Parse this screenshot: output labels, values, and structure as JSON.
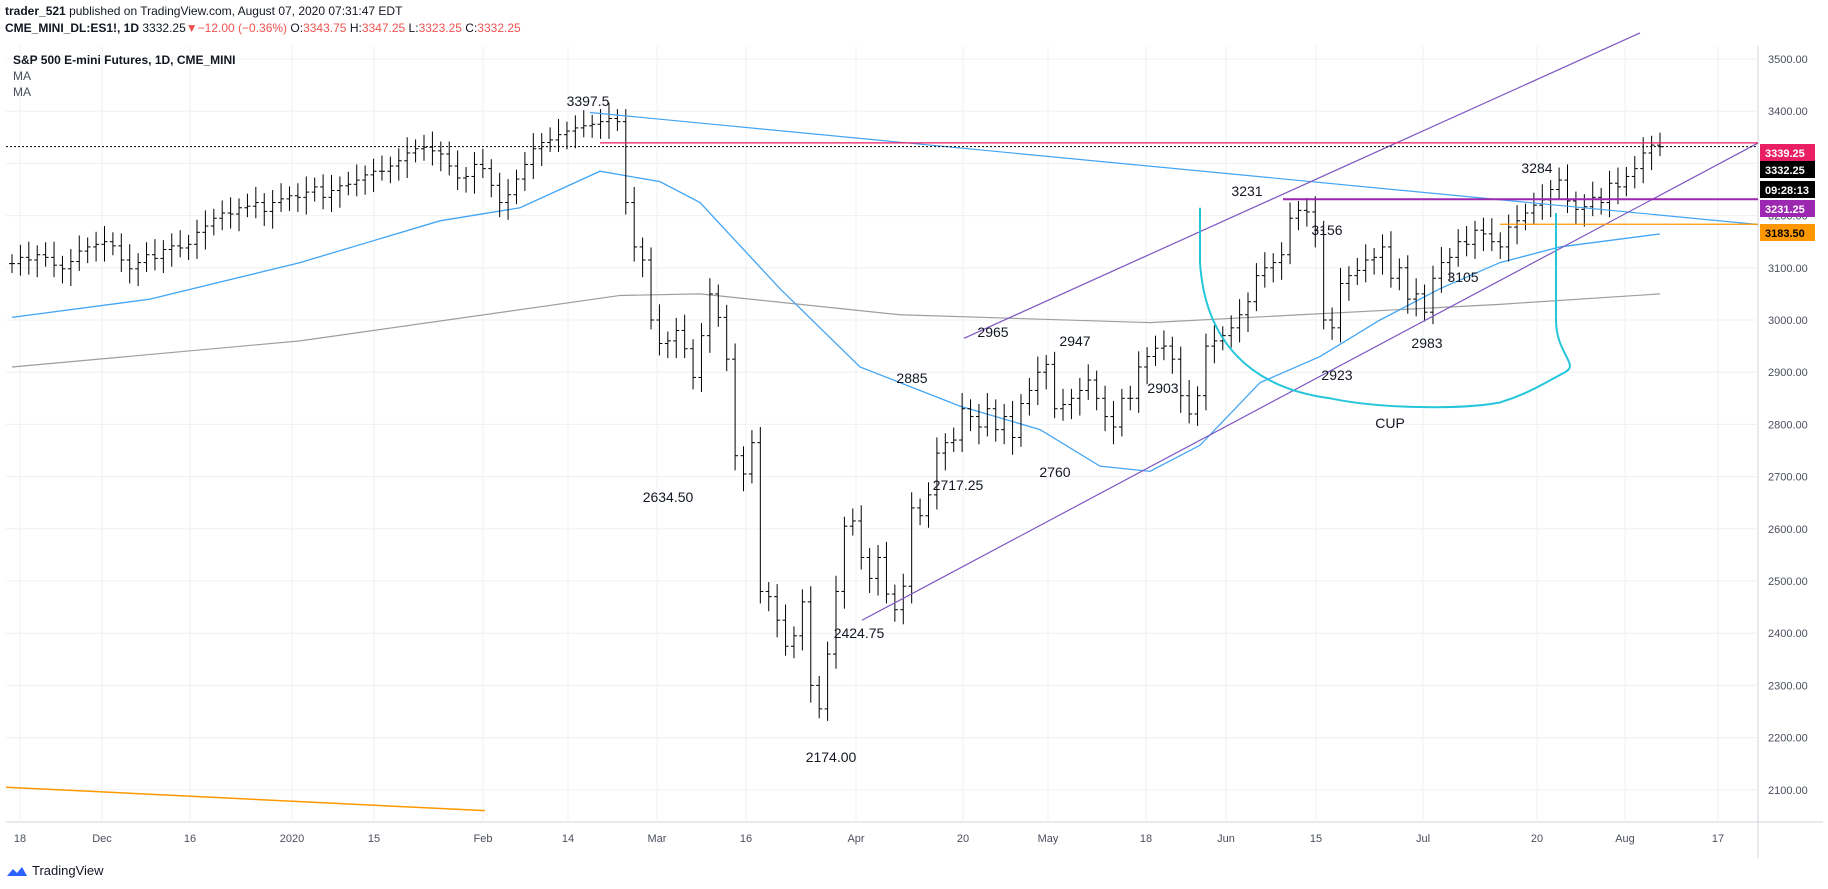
{
  "header": {
    "author": "trader_521",
    "published_text": "published on TradingView.com, August 07, 2020 07:31:47 EDT",
    "symbol_line": "CME_MINI_DL:ES1!, 1D",
    "last": "3332.25",
    "change": "−12.00 (−0.36%)",
    "o_label": "O:",
    "o_val": "3343.75",
    "h_label": "H:",
    "h_val": "3347.25",
    "l_label": "L:",
    "l_val": "3323.25",
    "c_label": "C:",
    "c_val": "3332.25"
  },
  "legend": {
    "title": "S&P 500 E-mini Futures, 1D, CME_MINI",
    "ma1": "MA",
    "ma2": "MA"
  },
  "footer": {
    "brand": "TradingView"
  },
  "chart_data": {
    "type": "bar",
    "subtype": "ohlc",
    "x_labels": [
      "18",
      "Dec",
      "16",
      "2020",
      "15",
      "Feb",
      "14",
      "Mar",
      "16",
      "Apr",
      "20",
      "May",
      "18",
      "Jun",
      "15",
      "Jul",
      "20",
      "Aug",
      "17"
    ],
    "y_ticks": [
      "3500.00",
      "3400.00",
      "3300.00",
      "3200.00",
      "3100.00",
      "3000.00",
      "2900.00",
      "2800.00",
      "2700.00",
      "2600.00",
      "2500.00",
      "2400.00",
      "2300.00",
      "2200.00",
      "2100.00"
    ],
    "ylim": [
      2050,
      3550
    ],
    "price_labels": [
      {
        "text": "3339.25",
        "value": 3339.25,
        "color": "#e91e63",
        "textColor": "#ffffff"
      },
      {
        "text": "3332.25",
        "value": 3332.25,
        "color": "#000000",
        "textColor": "#ffffff"
      },
      {
        "text": "09:28:13",
        "value": 3306,
        "color": "#000000",
        "textColor": "#ffffff"
      },
      {
        "text": "3231.25",
        "value": 3231.25,
        "color": "#9c27b0",
        "textColor": "#ffffff"
      },
      {
        "text": "3183.50",
        "value": 3183.5,
        "color": "#ff9800",
        "textColor": "#000000"
      }
    ],
    "annotations": [
      {
        "text": "3397.5",
        "date": "2020-02-19",
        "value": 3397.5
      },
      {
        "text": "2634.50",
        "date": "2020-02-28",
        "value": 2634.5
      },
      {
        "text": "2174.00",
        "date": "2020-03-23",
        "value": 2174
      },
      {
        "text": "2424.75",
        "date": "2020-04-01",
        "value": 2424.75
      },
      {
        "text": "2717.25",
        "date": "2020-04-21",
        "value": 2717.25
      },
      {
        "text": "2885",
        "date": "2020-04-17",
        "value": 2885
      },
      {
        "text": "2965",
        "date": "2020-04-29",
        "value": 2965
      },
      {
        "text": "2947",
        "date": "2020-05-13",
        "value": 2947
      },
      {
        "text": "2760",
        "date": "2020-05-14",
        "value": 2760
      },
      {
        "text": "2903",
        "date": "2020-05-26",
        "value": 2903
      },
      {
        "text": "3231",
        "date": "2020-06-08",
        "value": 3231
      },
      {
        "text": "3156",
        "date": "2020-06-16",
        "value": 3156
      },
      {
        "text": "2923",
        "date": "2020-06-15",
        "value": 2923
      },
      {
        "text": "2983",
        "date": "2020-06-29",
        "value": 2983
      },
      {
        "text": "3105",
        "date": "2020-07-14",
        "value": 3105
      },
      {
        "text": "3284",
        "date": "2020-07-22",
        "value": 3284
      },
      {
        "text": "CUP",
        "date": "2020-06-21",
        "value": 2800
      }
    ],
    "ohlc_closes": [
      3108,
      3120,
      3115,
      3125,
      3120,
      3105,
      3098,
      3112,
      3132,
      3140,
      3145,
      3150,
      3142,
      3115,
      3098,
      3110,
      3125,
      3118,
      3135,
      3142,
      3138,
      3145,
      3168,
      3180,
      3195,
      3205,
      3203,
      3215,
      3218,
      3225,
      3208,
      3225,
      3232,
      3238,
      3235,
      3245,
      3255,
      3235,
      3248,
      3257,
      3260,
      3268,
      3278,
      3285,
      3285,
      3295,
      3305,
      3320,
      3328,
      3331,
      3324,
      3318,
      3295,
      3272,
      3275,
      3298,
      3290,
      3258,
      3225,
      3240,
      3270,
      3298,
      3328,
      3340,
      3345,
      3355,
      3362,
      3368,
      3372,
      3375,
      3380,
      3386,
      3380,
      3225,
      3140,
      3115,
      3000,
      2955,
      2960,
      2980,
      2945,
      2890,
      2970,
      3050,
      3005,
      2925,
      2740,
      2705,
      2765,
      2480,
      2470,
      2425,
      2375,
      2395,
      2460,
      2300,
      2255,
      2360,
      2480,
      2605,
      2615,
      2545,
      2505,
      2545,
      2475,
      2445,
      2490,
      2640,
      2625,
      2665,
      2745,
      2765,
      2770,
      2830,
      2815,
      2795,
      2830,
      2790,
      2815,
      2775,
      2840,
      2865,
      2900,
      2915,
      2830,
      2838,
      2850,
      2865,
      2885,
      2850,
      2815,
      2795,
      2850,
      2850,
      2910,
      2930,
      2946,
      2950,
      2925,
      2855,
      2820,
      2855,
      2950,
      2960,
      2970,
      2985,
      3010,
      3035,
      3085,
      3100,
      3110,
      3125,
      3195,
      3210,
      3207,
      3172,
      3000,
      2985,
      3070,
      3085,
      3095,
      3115,
      3120,
      3140,
      3080,
      3100,
      3040,
      3050,
      3015,
      3080,
      3110,
      3120,
      3150,
      3145,
      3172,
      3165,
      3150,
      3140,
      3178,
      3190,
      3205,
      3220,
      3230,
      3250,
      3268,
      3228,
      3212,
      3217,
      3235,
      3225,
      3262,
      3255,
      3275,
      3290,
      3320,
      3335,
      3332
    ],
    "ma_50": "blue moving average",
    "ma_200": "gray moving average",
    "cup_label": "CUP"
  }
}
